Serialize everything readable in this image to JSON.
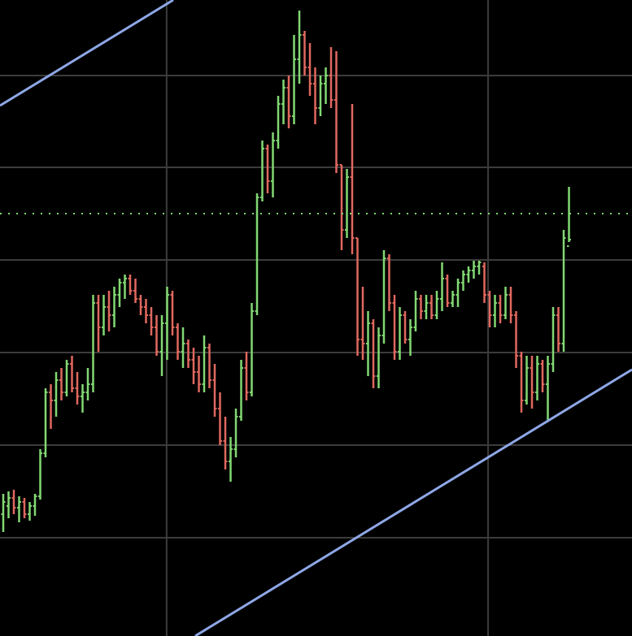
{
  "chart_data": {
    "type": "ohlc",
    "up_color": "#82d873",
    "down_color": "#e0685f",
    "grid": true,
    "grid_color": "#3c3c3c",
    "xlim": [
      -0.615,
      118.92
    ],
    "ylim": [
      0,
      783
    ],
    "xticks": [
      30.9,
      91.7
    ],
    "yticks": [
      121,
      235,
      349,
      463,
      577,
      690
    ],
    "open": [
      150,
      160,
      170,
      158,
      165,
      150,
      160,
      172,
      225,
      300,
      290,
      315,
      300,
      335,
      305,
      295,
      300,
      310,
      410,
      380,
      405,
      395,
      420,
      435,
      440,
      425,
      415,
      405,
      395,
      380,
      350,
      385,
      420,
      380,
      350,
      360,
      340,
      325,
      310,
      355,
      315,
      280,
      240,
      215,
      230,
      270,
      330,
      300,
      400,
      540,
      600,
      560,
      610,
      655,
      675,
      640,
      710,
      740,
      700,
      680,
      650,
      680,
      690,
      660,
      580,
      500,
      565,
      490,
      365,
      360,
      385,
      320,
      370,
      465,
      410,
      350,
      395,
      365,
      380,
      415,
      400,
      410,
      395,
      415,
      440,
      410,
      420,
      435,
      445,
      450,
      455,
      455,
      420,
      395,
      410,
      395,
      420,
      395,
      345,
      290,
      330,
      300,
      335,
      310,
      335,
      395,
      360,
      480
    ],
    "high": [
      175,
      178,
      180,
      172,
      170,
      165,
      175,
      230,
      305,
      310,
      325,
      330,
      340,
      345,
      325,
      310,
      330,
      420,
      420,
      420,
      425,
      430,
      440,
      445,
      445,
      440,
      420,
      415,
      405,
      395,
      395,
      430,
      425,
      385,
      380,
      365,
      355,
      345,
      370,
      360,
      335,
      300,
      270,
      245,
      280,
      340,
      350,
      410,
      545,
      610,
      605,
      620,
      665,
      685,
      690,
      740,
      770,
      745,
      730,
      700,
      690,
      700,
      725,
      720,
      580,
      575,
      655,
      490,
      430,
      400,
      390,
      380,
      475,
      470,
      420,
      405,
      400,
      390,
      425,
      420,
      420,
      420,
      425,
      460,
      445,
      425,
      440,
      450,
      455,
      462,
      462,
      460,
      425,
      420,
      420,
      430,
      430,
      400,
      350,
      345,
      345,
      345,
      340,
      345,
      405,
      405,
      500,
      553
    ],
    "low": [
      128,
      145,
      150,
      140,
      145,
      142,
      148,
      168,
      220,
      255,
      270,
      290,
      295,
      300,
      285,
      275,
      290,
      300,
      350,
      370,
      375,
      380,
      405,
      415,
      420,
      410,
      395,
      385,
      370,
      345,
      320,
      340,
      370,
      340,
      330,
      330,
      310,
      300,
      300,
      305,
      270,
      235,
      205,
      190,
      220,
      265,
      290,
      295,
      395,
      535,
      545,
      540,
      600,
      630,
      625,
      630,
      680,
      690,
      665,
      630,
      640,
      655,
      650,
      570,
      475,
      490,
      470,
      345,
      340,
      320,
      305,
      305,
      360,
      400,
      340,
      340,
      360,
      345,
      375,
      390,
      390,
      390,
      390,
      400,
      405,
      405,
      405,
      425,
      435,
      440,
      445,
      410,
      380,
      380,
      385,
      390,
      385,
      330,
      275,
      285,
      280,
      290,
      300,
      265,
      325,
      350,
      350,
      485
    ],
    "close": [
      165,
      170,
      158,
      165,
      150,
      160,
      172,
      225,
      300,
      290,
      315,
      300,
      335,
      305,
      295,
      300,
      310,
      410,
      380,
      405,
      395,
      420,
      435,
      440,
      425,
      415,
      405,
      395,
      380,
      350,
      385,
      420,
      380,
      350,
      360,
      340,
      325,
      310,
      355,
      315,
      280,
      240,
      215,
      230,
      270,
      330,
      300,
      400,
      540,
      600,
      560,
      610,
      655,
      675,
      640,
      710,
      740,
      700,
      680,
      650,
      680,
      690,
      660,
      580,
      500,
      565,
      490,
      365,
      360,
      385,
      320,
      370,
      465,
      410,
      350,
      395,
      365,
      380,
      415,
      400,
      410,
      395,
      415,
      440,
      410,
      420,
      435,
      445,
      450,
      455,
      460,
      420,
      395,
      410,
      395,
      420,
      395,
      345,
      290,
      330,
      300,
      335,
      310,
      335,
      395,
      360,
      490,
      488
    ],
    "price_line": 520,
    "price_line_color": "#7ed66f",
    "trendlines": [
      {
        "color": "#8ea7e6",
        "x": [
          -0.615,
          32.15
        ],
        "y": [
          653,
          783
        ]
      },
      {
        "color": "#8ea7e6",
        "x": [
          36.3,
          118.92
        ],
        "y": [
          0,
          328
        ]
      }
    ]
  }
}
